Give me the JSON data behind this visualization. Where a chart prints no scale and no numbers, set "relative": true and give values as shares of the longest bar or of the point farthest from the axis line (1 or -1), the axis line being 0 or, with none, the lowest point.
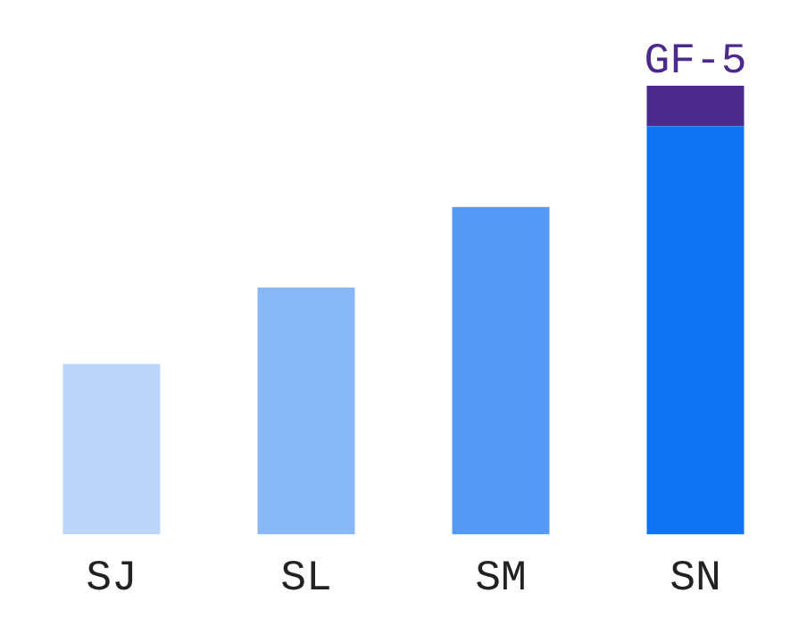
{
  "chart_data": {
    "type": "bar",
    "relative": true,
    "stacked": true,
    "categories": [
      "SJ",
      "SL",
      "SM",
      "SN"
    ],
    "series": [
      {
        "colors": [
          "#bcd6fb",
          "#89b8f9",
          "#5599f6",
          "#0f74f3"
        ],
        "values": [
          0.38,
          0.55,
          0.73,
          0.91
        ]
      },
      {
        "name": "GF-5",
        "color": "#4b2a8c",
        "values": [
          null,
          null,
          null,
          0.09
        ]
      }
    ],
    "grid": false,
    "legend": false
  }
}
